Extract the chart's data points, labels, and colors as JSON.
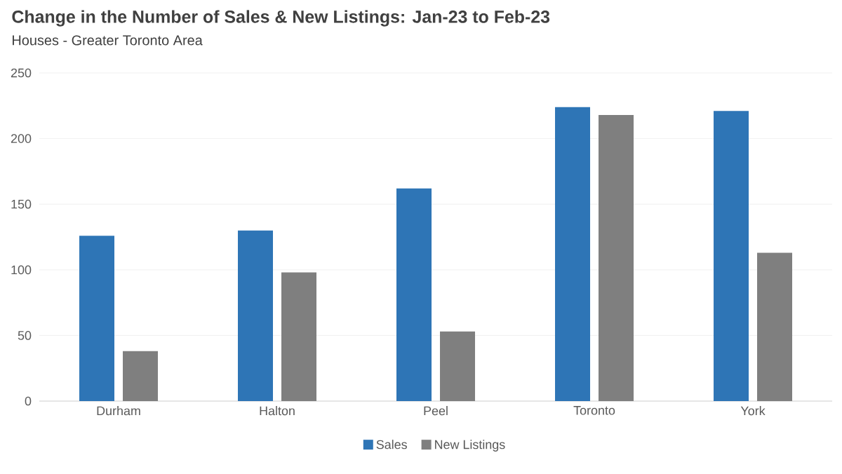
{
  "chart_data": {
    "type": "bar",
    "title": "Change in the Number of Sales & New Listings: Jan-23 to Feb-23",
    "subtitle": "Houses - Greater Toronto Area",
    "categories": [
      "Durham",
      "Halton",
      "Peel",
      "Toronto",
      "York"
    ],
    "series": [
      {
        "name": "Sales",
        "color": "#2e75b6",
        "values": [
          126,
          130,
          162,
          224,
          221
        ]
      },
      {
        "name": "New Listings",
        "color": "#7f7f7f",
        "values": [
          38,
          98,
          53,
          218,
          113
        ]
      }
    ],
    "ylim": [
      0,
      250
    ],
    "yticks": [
      0,
      50,
      100,
      150,
      200,
      250
    ],
    "grid": "y",
    "legend": "bottom"
  }
}
